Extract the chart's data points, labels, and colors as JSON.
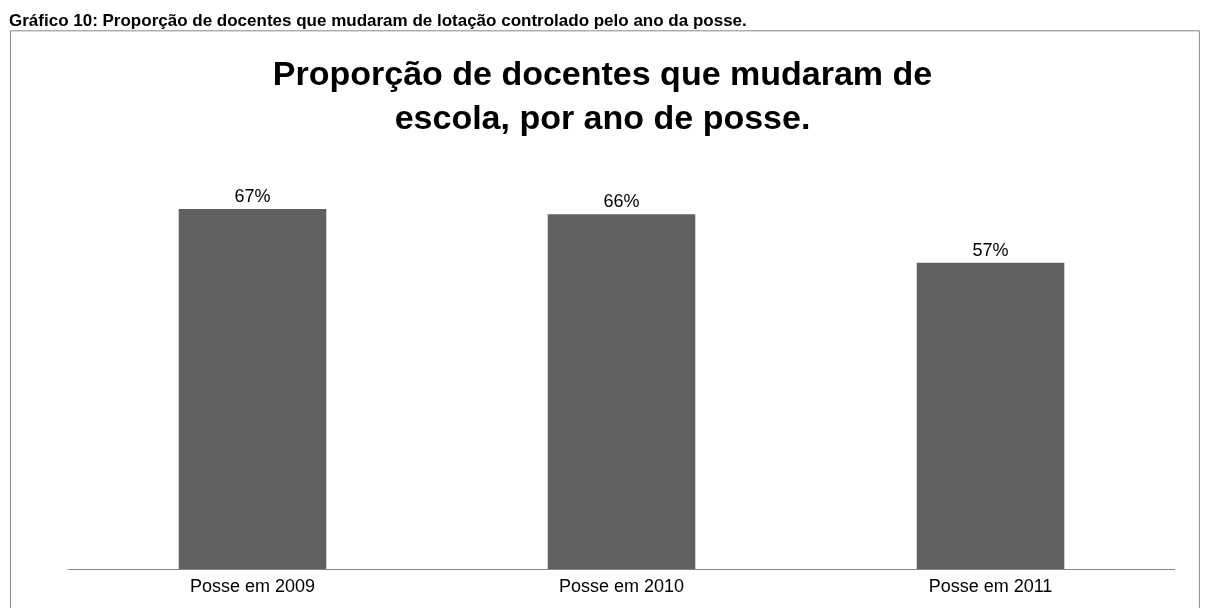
{
  "chart_data": {
    "type": "bar",
    "title": "Proporção de docentes que mudaram de escola, por ano de posse.",
    "annotations": [
      "Gráfico 10: Proporção de docentes que mudaram de lotação controlado pelo ano da posse."
    ],
    "categories": [
      "Posse em 2009",
      "Posse em 2010",
      "Posse em 2011"
    ],
    "values": [
      67,
      66,
      57
    ],
    "value_labels": [
      "67%",
      "66%",
      "57%"
    ],
    "color": "#606060"
  }
}
